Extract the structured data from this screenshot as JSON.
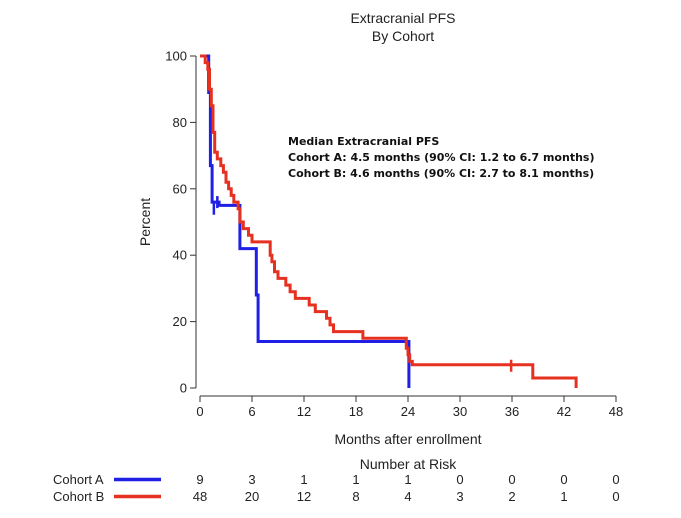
{
  "chart_data": {
    "type": "line",
    "title": "Extracranial PFS",
    "subtitle": "By Cohort",
    "xlabel": "Months after enrollment",
    "ylabel": "Percent",
    "xlim": [
      0,
      48
    ],
    "ylim": [
      0,
      100
    ],
    "x_ticks": [
      0,
      6,
      12,
      18,
      24,
      30,
      36,
      42,
      48
    ],
    "y_ticks": [
      0,
      20,
      40,
      60,
      80,
      100
    ],
    "grid": false,
    "annotation": {
      "heading": "Median Extracranial PFS",
      "lines": [
        "Cohort A: 4.5 months (90% CI: 1.2 to 6.7 months)",
        "Cohort B: 4.6 months (90% CI: 2.7 to 8.1 months)"
      ]
    },
    "series": [
      {
        "name": "Cohort A",
        "color": "#1f1fe6",
        "step": [
          [
            0,
            100
          ],
          [
            0.9,
            100
          ],
          [
            1.0,
            89
          ],
          [
            1.2,
            67
          ],
          [
            1.4,
            56
          ],
          [
            2.0,
            56
          ],
          [
            2.2,
            55
          ],
          [
            4.5,
            55
          ],
          [
            4.6,
            42
          ],
          [
            6.4,
            42
          ],
          [
            6.5,
            28
          ],
          [
            6.7,
            14
          ],
          [
            24.0,
            14
          ],
          [
            24.1,
            0
          ]
        ],
        "censored": [
          [
            1.6,
            54
          ],
          [
            2.0,
            56
          ]
        ]
      },
      {
        "name": "Cohort B",
        "color": "#e63020",
        "step": [
          [
            0,
            100
          ],
          [
            0.6,
            98
          ],
          [
            0.9,
            96
          ],
          [
            1.1,
            90
          ],
          [
            1.3,
            85
          ],
          [
            1.5,
            77
          ],
          [
            1.7,
            71
          ],
          [
            2.0,
            69
          ],
          [
            2.4,
            67
          ],
          [
            2.7,
            65
          ],
          [
            3.0,
            62
          ],
          [
            3.3,
            60
          ],
          [
            3.6,
            58
          ],
          [
            3.9,
            56
          ],
          [
            4.4,
            54
          ],
          [
            4.6,
            50
          ],
          [
            5.0,
            48
          ],
          [
            5.6,
            46
          ],
          [
            6.0,
            44
          ],
          [
            8.0,
            44
          ],
          [
            8.1,
            40
          ],
          [
            8.3,
            38
          ],
          [
            8.6,
            35
          ],
          [
            9.0,
            33
          ],
          [
            9.9,
            31
          ],
          [
            10.4,
            29
          ],
          [
            11.0,
            27
          ],
          [
            12.0,
            27
          ],
          [
            12.6,
            25
          ],
          [
            13.3,
            23
          ],
          [
            14.6,
            21
          ],
          [
            15.0,
            19
          ],
          [
            15.4,
            17
          ],
          [
            18.6,
            17
          ],
          [
            18.8,
            15
          ],
          [
            23.7,
            15
          ],
          [
            23.8,
            12
          ],
          [
            24.0,
            10
          ],
          [
            24.2,
            8
          ],
          [
            24.5,
            7
          ],
          [
            38.2,
            7
          ],
          [
            38.4,
            3
          ],
          [
            43.3,
            3
          ],
          [
            43.4,
            0
          ]
        ],
        "censored": [
          [
            35.9,
            6.7
          ]
        ]
      }
    ],
    "risk_table": {
      "title": "Number at Risk",
      "times": [
        0,
        6,
        12,
        18,
        24,
        30,
        36,
        42,
        48
      ],
      "rows": [
        {
          "label": "Cohort A",
          "color": "#1f1fe6",
          "counts": [
            9,
            3,
            1,
            1,
            1,
            0,
            0,
            0,
            0
          ]
        },
        {
          "label": "Cohort B",
          "color": "#e63020",
          "counts": [
            48,
            20,
            12,
            8,
            4,
            3,
            2,
            1,
            0
          ]
        }
      ]
    }
  }
}
